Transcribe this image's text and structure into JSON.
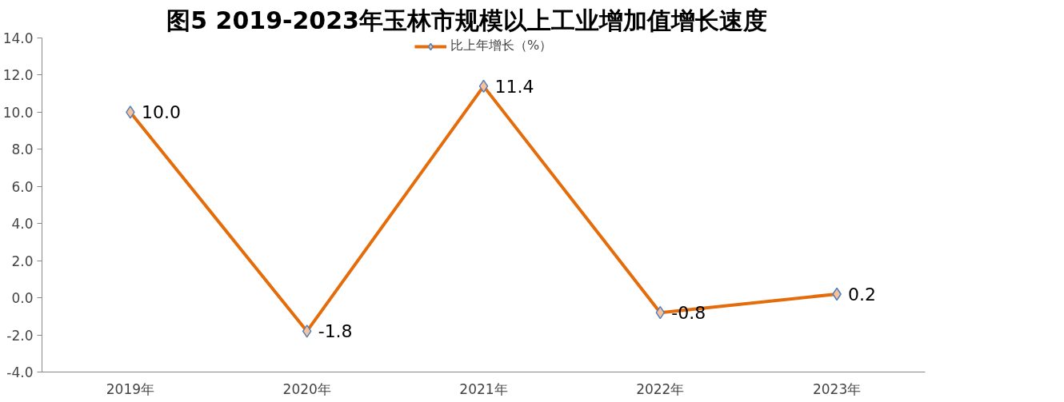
{
  "chart_data": {
    "type": "line",
    "title": "图5     2019-2023年玉林市规模以上工业增加值增长速度",
    "categories": [
      "2019年",
      "2020年",
      "2021年",
      "2022年",
      "2023年"
    ],
    "series": [
      {
        "name": "比上年增长（%）",
        "color": "#e46c0a",
        "values": [
          10.0,
          -1.8,
          11.4,
          -0.8,
          0.2
        ],
        "value_labels": [
          "10.0",
          "-1.8",
          "11.4",
          "-0.8",
          "0.2"
        ]
      }
    ],
    "ylim": [
      -4,
      14
    ],
    "yticks": [
      {
        "value": -4,
        "label": "-4.0"
      },
      {
        "value": -2,
        "label": "-2.0"
      },
      {
        "value": 0,
        "label": "0.0"
      },
      {
        "value": 2,
        "label": "2.0"
      },
      {
        "value": 4,
        "label": "4.0"
      },
      {
        "value": 6,
        "label": "6.0"
      },
      {
        "value": 8,
        "label": "8.0"
      },
      {
        "value": 10,
        "label": "10.0"
      },
      {
        "value": 12,
        "label": "12.0"
      },
      {
        "value": 14,
        "label": "14.0"
      }
    ],
    "marker": "diamond",
    "line_style": "solid",
    "legend": "top",
    "grid": false
  }
}
